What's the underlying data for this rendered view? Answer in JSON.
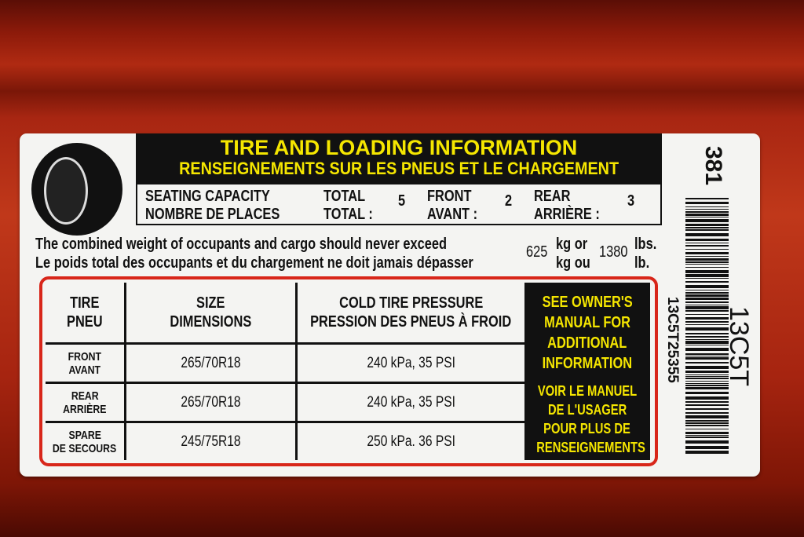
{
  "header": {
    "title": "TIRE AND LOADING INFORMATION",
    "subtitle": "RENSEIGNEMENTS SUR LES PNEUS ET LE CHARGEMENT"
  },
  "seating": {
    "label_en": "SEATING CAPACITY",
    "label_fr": "NOMBRE DE PLACES",
    "total_en": "TOTAL",
    "total_fr": "TOTAL :",
    "total": "5",
    "front_en": "FRONT",
    "front_fr": "AVANT :",
    "front": "2",
    "rear_en": "REAR",
    "rear_fr": "ARRIÈRE  :",
    "rear": "3"
  },
  "weight": {
    "line_en": "The combined weight of occupants and cargo should never exceed",
    "line_fr": "Le poids total des occupants et du chargement ne doit jamais dépasser",
    "kg": "625",
    "kg_or": "kg or",
    "kg_ou": "kg ou",
    "lbs": "1380",
    "lbs_unit_en": "lbs.",
    "lbs_unit_fr": "lb."
  },
  "table": {
    "headers": [
      {
        "en": "TIRE",
        "fr": "PNEU"
      },
      {
        "en": "SIZE",
        "fr": "DIMENSIONS"
      },
      {
        "en": "COLD TIRE PRESSURE",
        "fr": "PRESSION DES PNEUS À FROID"
      }
    ],
    "rows": [
      {
        "tire_en": "FRONT",
        "tire_fr": "AVANT",
        "size": "265/70R18",
        "pressure": "240 kPa, 35 PSI"
      },
      {
        "tire_en": "REAR",
        "tire_fr": "ARRIÈRE",
        "size": "265/70R18",
        "pressure": "240 kPa, 35 PSI"
      },
      {
        "tire_en": "SPARE",
        "tire_fr": "DE SECOURS",
        "size": "245/75R18",
        "pressure": "250 kPa. 36 PSI"
      }
    ],
    "note_en": [
      "SEE OWNER'S",
      "MANUAL FOR",
      "ADDITIONAL",
      "INFORMATION"
    ],
    "note_fr": [
      "VOIR LE MANUEL",
      "DE L'USAGER",
      "POUR PLUS DE",
      "RENSEIGNEMENTS"
    ]
  },
  "barcode": {
    "top": "381",
    "code": "13C5T",
    "serial": "13C5T25355"
  },
  "colors": {
    "yellow": "#f5e600",
    "red_border": "#d8261a",
    "paint": "#b02a12"
  }
}
